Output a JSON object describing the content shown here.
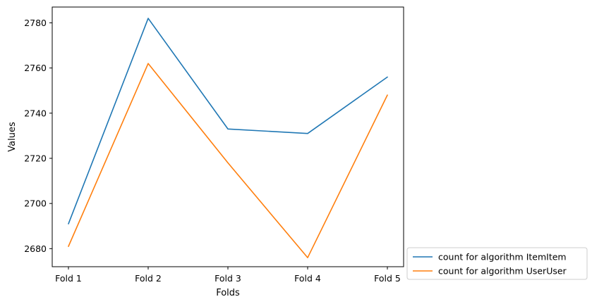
{
  "chart_data": {
    "type": "line",
    "categories": [
      "Fold 1",
      "Fold 2",
      "Fold 3",
      "Fold 4",
      "Fold 5"
    ],
    "series": [
      {
        "name": "count for algorithm ItemItem",
        "color": "#1f77b4",
        "values": [
          2691,
          2782,
          2733,
          2731,
          2756
        ]
      },
      {
        "name": "count for algorithm UserUser",
        "color": "#ff7f0e",
        "values": [
          2681,
          2762,
          2718,
          2676,
          2748
        ]
      }
    ],
    "xlabel": "Folds",
    "ylabel": "Values",
    "ylim": [
      2672,
      2787
    ],
    "yticks": [
      2680,
      2700,
      2720,
      2740,
      2760,
      2780
    ],
    "grid": false,
    "legend": "outside-bottom-right"
  }
}
